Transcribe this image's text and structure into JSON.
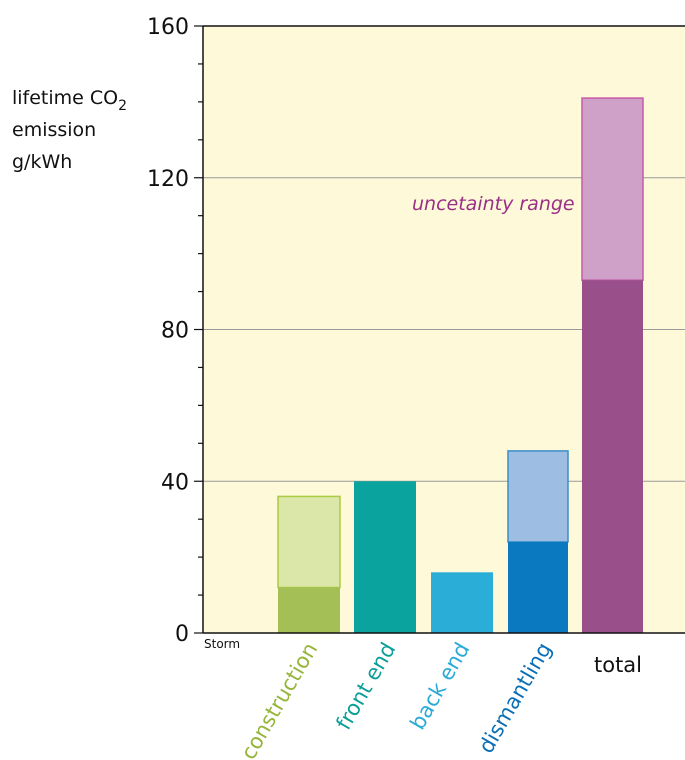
{
  "chart_data": {
    "type": "bar",
    "title": "",
    "ylabel_lines": [
      "lifetime CO",
      "emission",
      "g/kWh"
    ],
    "ylabel_subscript": "2",
    "ylim": [
      0,
      160
    ],
    "yticks": [
      0,
      40,
      80,
      120,
      160
    ],
    "grid": true,
    "background_color": "#fef9d8",
    "grid_color": "#9a9a9a",
    "first_category_label": "Storm",
    "annotation": {
      "text": "uncetainty range",
      "color": "#9a2f86"
    },
    "categories": [
      {
        "label": "construction",
        "label_color": "#96b53a",
        "low": 12,
        "high": 36,
        "low_color": "#a4bf55",
        "range_color": "#dbe7a8",
        "border_color": "#a9cc44"
      },
      {
        "label": "front end",
        "label_color": "#0a9e98",
        "low": 40,
        "high": 40,
        "low_color": "#0aa39d",
        "range_color": "#0aa39d",
        "border_color": "#0aa39d"
      },
      {
        "label": "back end",
        "label_color": "#2aaad6",
        "low": 16,
        "high": 16,
        "low_color": "#2aaed8",
        "range_color": "#2aaed8",
        "border_color": "#2aaed8"
      },
      {
        "label": "dismantling",
        "label_color": "#0a6fb7",
        "low": 24,
        "high": 48,
        "low_color": "#0a79bf",
        "range_color": "#9dbde2",
        "border_color": "#3b8ec8"
      },
      {
        "label": "total",
        "label_color": "#111111",
        "low": 93,
        "high": 141,
        "low_color": "#994f8a",
        "range_color": "#cfa0c8",
        "border_color": "#c45aa8"
      }
    ]
  }
}
